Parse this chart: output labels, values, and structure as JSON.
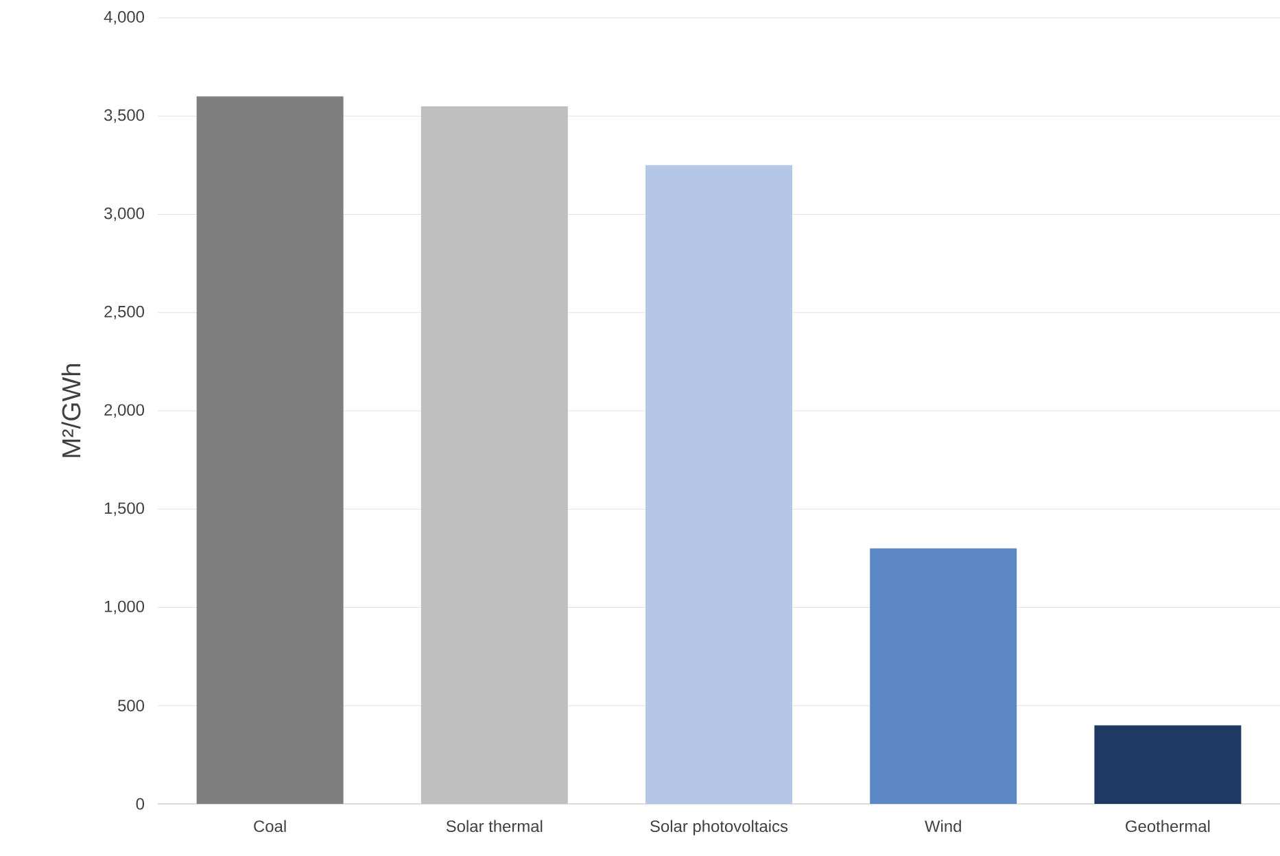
{
  "chart_data": {
    "type": "bar",
    "ylabel": "M²/GWh",
    "categories": [
      "Coal",
      "Solar thermal",
      "Solar photovoltaics",
      "Wind",
      "Geothermal"
    ],
    "values": [
      3600,
      3550,
      3250,
      1300,
      400
    ],
    "colors": [
      "#7f7f7f",
      "#bfbfbf",
      "#b4c7e7",
      "#5b87c5",
      "#203864"
    ],
    "ylim": [
      0,
      4000
    ],
    "yticks": [
      {
        "value": 0,
        "label": "0"
      },
      {
        "value": 500,
        "label": "500"
      },
      {
        "value": 1000,
        "label": "1,000"
      },
      {
        "value": 1500,
        "label": "1,500"
      },
      {
        "value": 2000,
        "label": "2,000"
      },
      {
        "value": 2500,
        "label": "2,500"
      },
      {
        "value": 3000,
        "label": "3,000"
      },
      {
        "value": 3500,
        "label": "3,500"
      },
      {
        "value": 4000,
        "label": "4,000"
      }
    ],
    "grid": "y"
  }
}
